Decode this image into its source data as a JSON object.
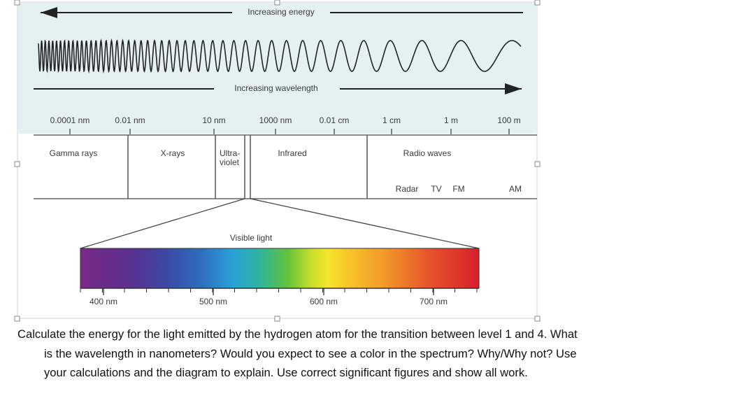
{
  "diagram": {
    "energy_label": "Increasing energy",
    "wavelength_label": "Increasing wavelength",
    "scale_labels": [
      "0.0001 nm",
      "0.01 nm",
      "10 nm",
      "1000 nm",
      "0.01 cm",
      "1 cm",
      "1 m",
      "100 m"
    ],
    "bands": {
      "gamma": "Gamma rays",
      "xray": "X-rays",
      "uv": [
        "Ultra-",
        "violet"
      ],
      "infrared": "Infrared",
      "radio": "Radio waves"
    },
    "radio_sub": [
      "Radar",
      "TV",
      "FM",
      "AM"
    ],
    "visible_label": "Visible light",
    "visible_ticks": [
      "400 nm",
      "500 nm",
      "600 nm",
      "700 nm"
    ]
  },
  "question": {
    "lines": [
      "Calculate the energy for the light emitted by the hydrogen atom for the transition between level 1 and 4.  What",
      "is the wavelength in nanometers?  Would you expect to see a color in the spectrum? Why/Why not?  Use",
      "your calculations and the diagram to explain.   Use correct significant figures and show all work."
    ]
  }
}
